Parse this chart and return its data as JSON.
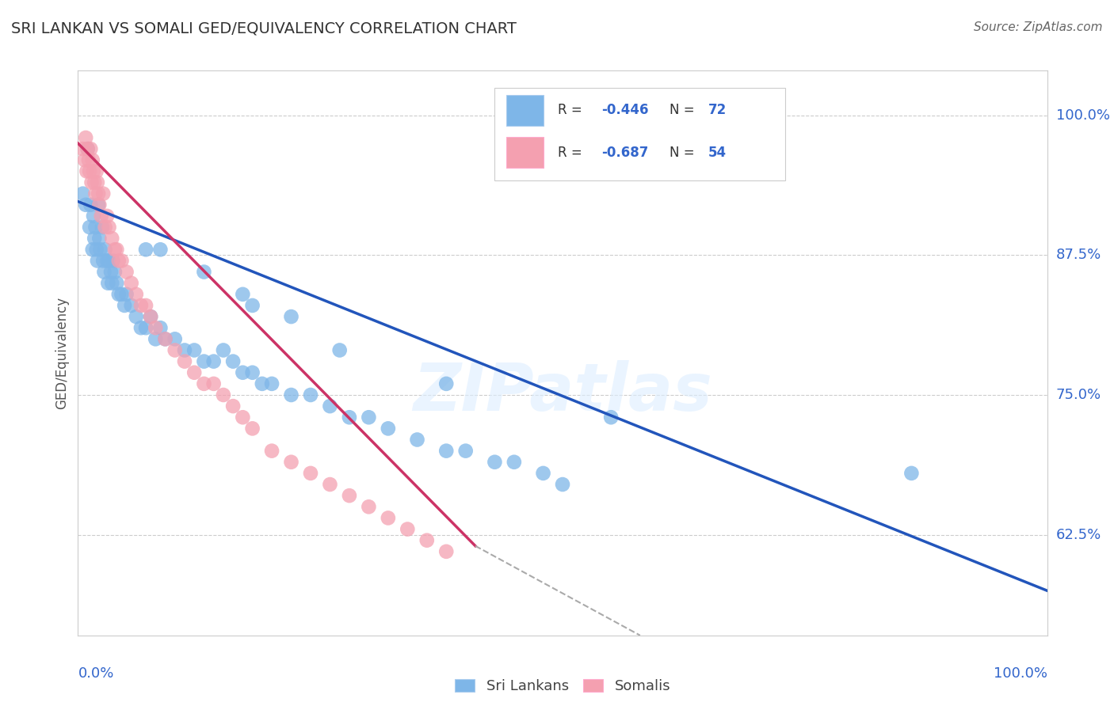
{
  "title": "SRI LANKAN VS SOMALI GED/EQUIVALENCY CORRELATION CHART",
  "source": "Source: ZipAtlas.com",
  "ylabel": "GED/Equivalency",
  "ytick_labels": [
    "100.0%",
    "87.5%",
    "75.0%",
    "62.5%"
  ],
  "ytick_values": [
    1.0,
    0.875,
    0.75,
    0.625
  ],
  "xlim": [
    0.0,
    1.0
  ],
  "ylim": [
    0.535,
    1.04
  ],
  "legend_r1": "-0.446",
  "legend_n1": "72",
  "legend_r2": "-0.687",
  "legend_n2": "54",
  "color_blue": "#7EB6E8",
  "color_pink": "#F4A0B0",
  "color_blue_line": "#2255BB",
  "color_pink_line": "#CC3366",
  "color_axis_labels": "#3366CC",
  "watermark": "ZIPatlas",
  "sri_lankans_x": [
    0.005,
    0.008,
    0.01,
    0.012,
    0.013,
    0.015,
    0.016,
    0.017,
    0.018,
    0.019,
    0.02,
    0.021,
    0.022,
    0.023,
    0.025,
    0.026,
    0.027,
    0.028,
    0.03,
    0.031,
    0.032,
    0.034,
    0.035,
    0.036,
    0.038,
    0.04,
    0.042,
    0.045,
    0.048,
    0.05,
    0.055,
    0.06,
    0.065,
    0.07,
    0.075,
    0.08,
    0.085,
    0.09,
    0.1,
    0.11,
    0.12,
    0.13,
    0.14,
    0.15,
    0.16,
    0.17,
    0.18,
    0.19,
    0.2,
    0.22,
    0.24,
    0.26,
    0.28,
    0.3,
    0.32,
    0.35,
    0.38,
    0.4,
    0.43,
    0.45,
    0.48,
    0.5,
    0.18,
    0.38,
    0.55,
    0.27,
    0.22,
    0.17,
    0.13,
    0.085,
    0.07,
    0.86
  ],
  "sri_lankans_y": [
    0.93,
    0.92,
    0.97,
    0.9,
    0.92,
    0.88,
    0.91,
    0.89,
    0.9,
    0.88,
    0.87,
    0.92,
    0.89,
    0.88,
    0.9,
    0.87,
    0.86,
    0.88,
    0.87,
    0.85,
    0.87,
    0.86,
    0.85,
    0.87,
    0.86,
    0.85,
    0.84,
    0.84,
    0.83,
    0.84,
    0.83,
    0.82,
    0.81,
    0.81,
    0.82,
    0.8,
    0.81,
    0.8,
    0.8,
    0.79,
    0.79,
    0.78,
    0.78,
    0.79,
    0.78,
    0.77,
    0.77,
    0.76,
    0.76,
    0.75,
    0.75,
    0.74,
    0.73,
    0.73,
    0.72,
    0.71,
    0.7,
    0.7,
    0.69,
    0.69,
    0.68,
    0.67,
    0.83,
    0.76,
    0.73,
    0.79,
    0.82,
    0.84,
    0.86,
    0.88,
    0.88,
    0.68
  ],
  "somalis_x": [
    0.005,
    0.007,
    0.008,
    0.009,
    0.01,
    0.011,
    0.012,
    0.013,
    0.014,
    0.015,
    0.016,
    0.017,
    0.018,
    0.019,
    0.02,
    0.021,
    0.022,
    0.024,
    0.026,
    0.028,
    0.03,
    0.032,
    0.035,
    0.038,
    0.04,
    0.042,
    0.045,
    0.05,
    0.055,
    0.06,
    0.065,
    0.07,
    0.075,
    0.08,
    0.09,
    0.1,
    0.11,
    0.12,
    0.13,
    0.14,
    0.15,
    0.16,
    0.17,
    0.18,
    0.2,
    0.22,
    0.24,
    0.26,
    0.28,
    0.3,
    0.32,
    0.34,
    0.36,
    0.38
  ],
  "somalis_y": [
    0.97,
    0.96,
    0.98,
    0.95,
    0.97,
    0.96,
    0.95,
    0.97,
    0.94,
    0.96,
    0.95,
    0.94,
    0.93,
    0.95,
    0.94,
    0.93,
    0.92,
    0.91,
    0.93,
    0.9,
    0.91,
    0.9,
    0.89,
    0.88,
    0.88,
    0.87,
    0.87,
    0.86,
    0.85,
    0.84,
    0.83,
    0.83,
    0.82,
    0.81,
    0.8,
    0.79,
    0.78,
    0.77,
    0.76,
    0.76,
    0.75,
    0.74,
    0.73,
    0.72,
    0.7,
    0.69,
    0.68,
    0.67,
    0.66,
    0.65,
    0.64,
    0.63,
    0.62,
    0.61
  ],
  "blue_line_x": [
    0.0,
    1.0
  ],
  "blue_line_y": [
    0.923,
    0.575
  ],
  "pink_line_x": [
    0.0,
    0.41
  ],
  "pink_line_y": [
    0.975,
    0.615
  ],
  "dashed_line_x": [
    0.41,
    0.58
  ],
  "dashed_line_y": [
    0.615,
    0.535
  ]
}
